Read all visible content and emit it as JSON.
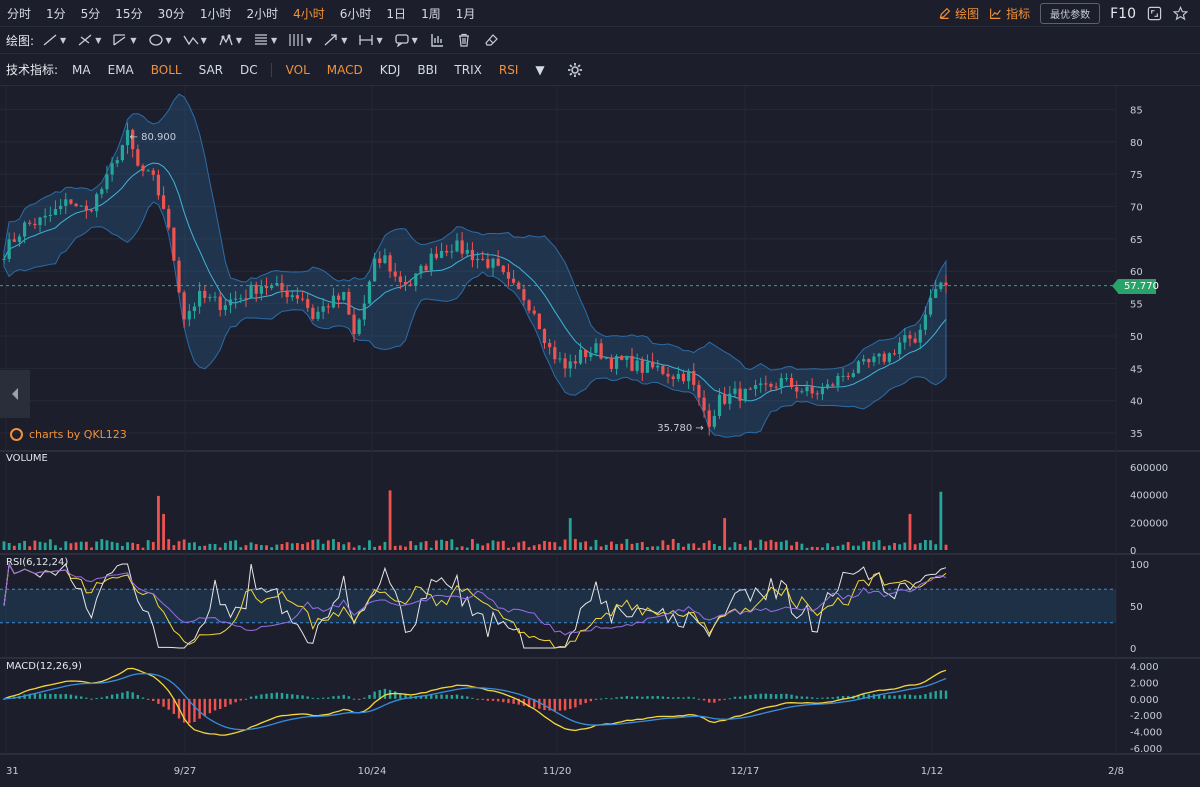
{
  "timeframes": [
    "分时",
    "1分",
    "5分",
    "15分",
    "30分",
    "1小时",
    "2小时",
    "4小时",
    "6小时",
    "1日",
    "1周",
    "1月"
  ],
  "timeframe_active": "4小时",
  "toolbar_right": {
    "draw_label": "绘图",
    "indicator_label": "指标",
    "param_label": "最优参数",
    "f10_label": "F10"
  },
  "draw_bar": {
    "label": "绘图:",
    "tools": [
      "line-tool-icon",
      "ray-tool-icon",
      "channel-tool-icon",
      "circle-tool-icon",
      "zigzag-tool-icon",
      "pattern-tool-icon",
      "fib-tool-icon",
      "vertical-lines-tool-icon",
      "arrow-tool-icon",
      "range-tool-icon",
      "comment-tool-icon"
    ],
    "extra": [
      "chart-style-icon",
      "trash-icon",
      "eraser-icon"
    ]
  },
  "indicator_bar": {
    "label": "技术指标:",
    "main": [
      {
        "name": "MA",
        "active": false
      },
      {
        "name": "EMA",
        "active": false
      },
      {
        "name": "BOLL",
        "active": true
      },
      {
        "name": "SAR",
        "active": false
      },
      {
        "name": "DC",
        "active": false
      }
    ],
    "sub": [
      {
        "name": "VOL",
        "active": true
      },
      {
        "name": "MACD",
        "active": true
      },
      {
        "name": "KDJ",
        "active": false
      },
      {
        "name": "BBI",
        "active": false
      },
      {
        "name": "TRIX",
        "active": false
      },
      {
        "name": "RSI",
        "active": true
      }
    ]
  },
  "watermark": "charts by QKL123",
  "panes": {
    "volume_label": "VOLUME",
    "rsi_label": "RSI(6,12,24)",
    "macd_label": "MACD(12,26,9)"
  },
  "colors": {
    "up": "#26a69a",
    "down": "#ef5350",
    "accent": "#f0913a",
    "boll_band": "#2b6ca8",
    "rsi6": "#e6e6e6",
    "rsi12": "#f5d63d",
    "rsi24": "#9b6ee6",
    "macd_dif": "#f5d63d",
    "macd_dea": "#3a8ddb"
  },
  "chart_data": {
    "type": "candlestick",
    "price_axis": {
      "ticks": [
        85,
        80,
        75,
        70,
        65,
        60,
        55,
        50,
        45,
        40,
        35
      ],
      "range": [
        33,
        88
      ]
    },
    "volume_axis": {
      "ticks": [
        "600000",
        "400000",
        "200000",
        "0"
      ],
      "range": [
        0,
        620000
      ]
    },
    "rsi_axis": {
      "ticks": [
        "100",
        "50",
        "0"
      ],
      "range": [
        0,
        100
      ],
      "band": [
        30,
        70
      ]
    },
    "macd_axis": {
      "ticks": [
        "4.000",
        "2.000",
        "0.000",
        "-2.000",
        "-4.000",
        "-6.000"
      ],
      "range": [
        -6.5,
        4.5
      ]
    },
    "x_ticks": [
      "31",
      "9/27",
      "10/24",
      "11/20",
      "12/17",
      "1/12",
      "2/8"
    ],
    "last_price": "57.770",
    "high_marker": "80.900",
    "low_marker": "35.780",
    "price_path": [
      [
        0,
        63
      ],
      [
        4,
        67
      ],
      [
        8,
        68
      ],
      [
        13,
        71
      ],
      [
        16,
        69
      ],
      [
        20,
        74
      ],
      [
        22,
        78
      ],
      [
        24,
        80.9
      ],
      [
        26,
        76
      ],
      [
        29,
        74
      ],
      [
        31,
        70
      ],
      [
        33,
        62
      ],
      [
        35,
        53
      ],
      [
        38,
        56
      ],
      [
        42,
        55
      ],
      [
        46,
        56
      ],
      [
        50,
        58
      ],
      [
        54,
        57
      ],
      [
        58,
        56
      ],
      [
        60,
        53
      ],
      [
        63,
        55
      ],
      [
        66,
        56
      ],
      [
        68,
        50
      ],
      [
        70,
        55
      ],
      [
        72,
        61
      ],
      [
        74,
        62
      ],
      [
        76,
        59
      ],
      [
        79,
        58
      ],
      [
        81,
        60
      ],
      [
        84,
        63
      ],
      [
        87,
        64
      ],
      [
        90,
        63
      ],
      [
        92,
        62
      ],
      [
        95,
        61
      ],
      [
        98,
        58
      ],
      [
        101,
        56
      ],
      [
        103,
        54
      ],
      [
        106,
        48
      ],
      [
        109,
        45
      ],
      [
        112,
        47
      ],
      [
        115,
        48
      ],
      [
        118,
        46
      ],
      [
        121,
        46
      ],
      [
        124,
        45
      ],
      [
        127,
        45
      ],
      [
        130,
        44
      ],
      [
        133,
        44
      ],
      [
        135,
        40
      ],
      [
        137,
        37
      ],
      [
        139,
        40
      ],
      [
        142,
        41
      ],
      [
        145,
        41
      ],
      [
        148,
        42
      ],
      [
        151,
        43
      ],
      [
        154,
        42
      ],
      [
        157,
        41
      ],
      [
        160,
        42
      ],
      [
        163,
        44
      ],
      [
        166,
        45
      ],
      [
        169,
        46
      ],
      [
        172,
        47
      ],
      [
        175,
        50
      ],
      [
        177,
        48
      ],
      [
        179,
        54
      ],
      [
        181,
        58
      ],
      [
        183,
        57.77
      ]
    ],
    "volume_spikes": [
      [
        30,
        390000
      ],
      [
        31,
        260000
      ],
      [
        75,
        430000
      ],
      [
        110,
        230000
      ],
      [
        140,
        230000
      ],
      [
        176,
        260000
      ],
      [
        182,
        420000
      ]
    ]
  }
}
